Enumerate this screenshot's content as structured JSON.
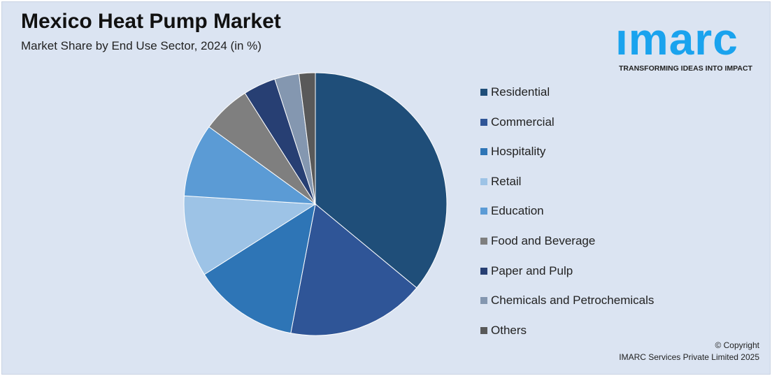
{
  "header": {
    "title": "Mexico Heat Pump Market",
    "subtitle": "Market Share by End Use Sector, 2024 (in %)"
  },
  "logo": {
    "text": "imarc",
    "tagline": "TRANSFORMING IDEAS INTO IMPACT"
  },
  "footer": {
    "copyright": "© Copyright",
    "company": "IMARC Services Private Limited 2025"
  },
  "chart_data": {
    "type": "pie",
    "title": "Mexico Heat Pump Market",
    "subtitle": "Market Share by End Use Sector, 2024 (in %)",
    "legend_position": "right",
    "categories": [
      "Residential",
      "Commercial",
      "Hospitality",
      "Retail",
      "Education",
      "Food and Beverage",
      "Paper and Pulp",
      "Chemicals and Petrochemicals",
      "Others"
    ],
    "values": [
      36,
      17,
      13,
      10,
      9,
      6,
      4,
      3,
      2
    ],
    "colors": [
      "#1f4e79",
      "#2f5597",
      "#2e75b6",
      "#9dc3e6",
      "#5b9bd5",
      "#7f7f7f",
      "#273f73",
      "#8497b0",
      "#595959"
    ]
  }
}
